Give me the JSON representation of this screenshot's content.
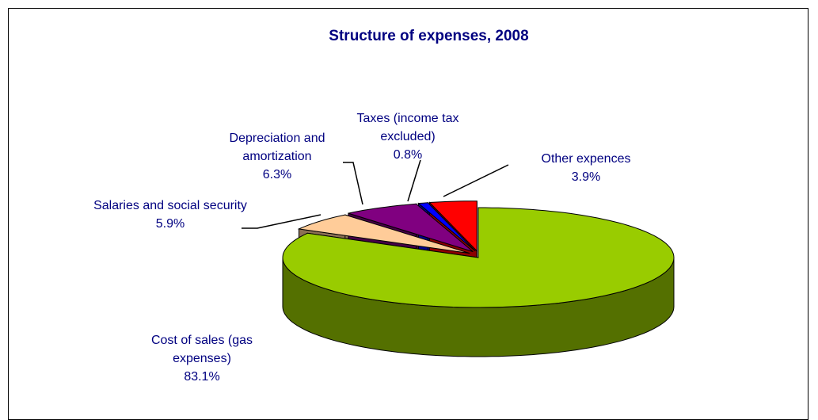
{
  "chart_data": {
    "type": "pie3d",
    "title": "Structure of expenses, 2008",
    "categories": [
      "Cost of sales (gas expenses)",
      "Salaries and social security",
      "Depreciation and amortization",
      "Taxes (income tax excluded)",
      "Other expences"
    ],
    "values": [
      83.1,
      5.9,
      6.3,
      0.8,
      3.9
    ],
    "value_labels": [
      "83.1%",
      "5.9%",
      "6.3%",
      "0.8%",
      "3.9%"
    ],
    "colors": [
      "#99cc00",
      "#ffcc99",
      "#800080",
      "#0000ff",
      "#ff0000"
    ]
  }
}
